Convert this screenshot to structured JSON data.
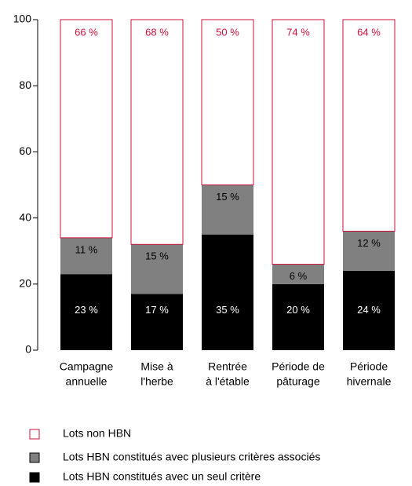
{
  "chart_data": {
    "type": "stacked_bar",
    "categories": [
      [
        "Campagne",
        "annuelle"
      ],
      [
        "Mise à",
        "l'herbe"
      ],
      [
        "Rentrée",
        "à l'étable"
      ],
      [
        "Période de",
        "pâturage"
      ],
      [
        "Période",
        "hivernale"
      ]
    ],
    "series": [
      {
        "name": "Lots HBN constitués avec un seul critère",
        "color": "#000000",
        "label_color": "#ffffff",
        "values": [
          23,
          17,
          35,
          20,
          24
        ],
        "value_labels": [
          "23 %",
          "17 %",
          "35 %",
          "20 %",
          "24 %"
        ]
      },
      {
        "name": "Lots HBN constitués avec plusieurs critères associés",
        "color": "#808080",
        "label_color": "#000000",
        "values": [
          11,
          15,
          15,
          6,
          12
        ],
        "value_labels": [
          "11 %",
          "15 %",
          "15 %",
          "6 %",
          "12 %"
        ]
      },
      {
        "name": "Lots non HBN",
        "color": "#ffffff",
        "stroke": "#d0103a",
        "label_color": "#d0103a",
        "values": [
          66,
          68,
          50,
          74,
          64
        ],
        "value_labels": [
          "66 %",
          "68 %",
          "50 %",
          "74 %",
          "64 %"
        ]
      }
    ],
    "ylim": [
      0,
      100
    ],
    "yticks": [
      0,
      20,
      40,
      60,
      80,
      100
    ],
    "grid": false
  }
}
